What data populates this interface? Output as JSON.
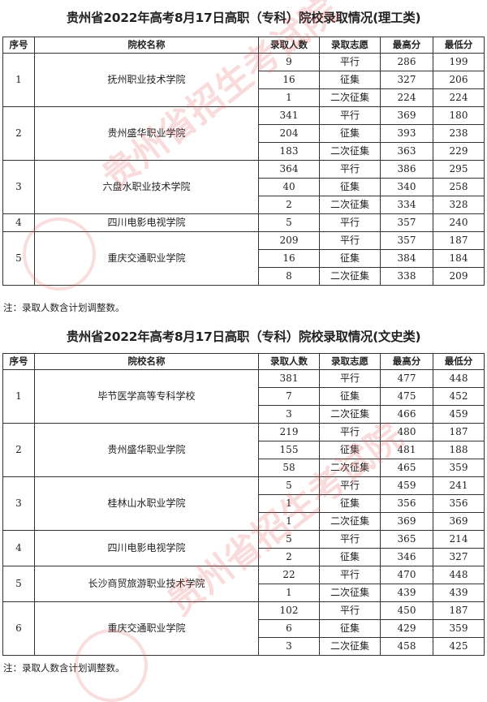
{
  "watermark_text": "贵州省招生考试院",
  "columns": [
    "序号",
    "院校名称",
    "录取人数",
    "录取志愿",
    "最高分",
    "最低分"
  ],
  "tables": [
    {
      "title": "贵州省2022年高考8月17日高职（专科）院校录取情况(理工类)",
      "note": "注：录取人数含计划调整数。",
      "schools": [
        {
          "no": "1",
          "name": "抚州职业技术学院",
          "entries": [
            [
              "9",
              "平行",
              "286",
              "199"
            ],
            [
              "16",
              "征集",
              "327",
              "206"
            ],
            [
              "1",
              "二次征集",
              "224",
              "224"
            ]
          ]
        },
        {
          "no": "2",
          "name": "贵州盛华职业学院",
          "entries": [
            [
              "341",
              "平行",
              "369",
              "180"
            ],
            [
              "204",
              "征集",
              "393",
              "238"
            ],
            [
              "183",
              "二次征集",
              "363",
              "229"
            ]
          ]
        },
        {
          "no": "3",
          "name": "六盘水职业技术学院",
          "entries": [
            [
              "364",
              "平行",
              "386",
              "295"
            ],
            [
              "40",
              "征集",
              "340",
              "258"
            ],
            [
              "2",
              "二次征集",
              "334",
              "328"
            ]
          ]
        },
        {
          "no": "4",
          "name": "四川电影电视学院",
          "entries": [
            [
              "5",
              "平行",
              "357",
              "240"
            ]
          ]
        },
        {
          "no": "5",
          "name": "重庆交通职业学院",
          "entries": [
            [
              "209",
              "平行",
              "357",
              "187"
            ],
            [
              "16",
              "征集",
              "384",
              "184"
            ],
            [
              "8",
              "二次征集",
              "338",
              "209"
            ]
          ]
        }
      ]
    },
    {
      "title": "贵州省2022年高考8月17日高职（专科）院校录取情况(文史类)",
      "note": "注：录取人数含计划调整数。",
      "schools": [
        {
          "no": "1",
          "name": "毕节医学高等专科学校",
          "entries": [
            [
              "381",
              "平行",
              "477",
              "448"
            ],
            [
              "7",
              "征集",
              "475",
              "452"
            ],
            [
              "3",
              "二次征集",
              "466",
              "459"
            ]
          ]
        },
        {
          "no": "2",
          "name": "贵州盛华职业学院",
          "entries": [
            [
              "219",
              "平行",
              "480",
              "187"
            ],
            [
              "155",
              "征集",
              "481",
              "188"
            ],
            [
              "58",
              "二次征集",
              "465",
              "359"
            ]
          ]
        },
        {
          "no": "3",
          "name": "桂林山水职业学院",
          "entries": [
            [
              "5",
              "平行",
              "459",
              "241"
            ],
            [
              "1",
              "征集",
              "356",
              "356"
            ],
            [
              "1",
              "二次征集",
              "369",
              "369"
            ]
          ]
        },
        {
          "no": "4",
          "name": "四川电影电视学院",
          "entries": [
            [
              "5",
              "平行",
              "365",
              "214"
            ],
            [
              "2",
              "征集",
              "346",
              "327"
            ]
          ]
        },
        {
          "no": "5",
          "name": "长沙商贸旅游职业技术学院",
          "entries": [
            [
              "22",
              "平行",
              "470",
              "448"
            ],
            [
              "1",
              "二次征集",
              "439",
              "439"
            ]
          ]
        },
        {
          "no": "6",
          "name": "重庆交通职业学院",
          "entries": [
            [
              "102",
              "平行",
              "450",
              "187"
            ],
            [
              "6",
              "征集",
              "429",
              "359"
            ],
            [
              "3",
              "二次征集",
              "458",
              "425"
            ]
          ]
        }
      ]
    }
  ]
}
